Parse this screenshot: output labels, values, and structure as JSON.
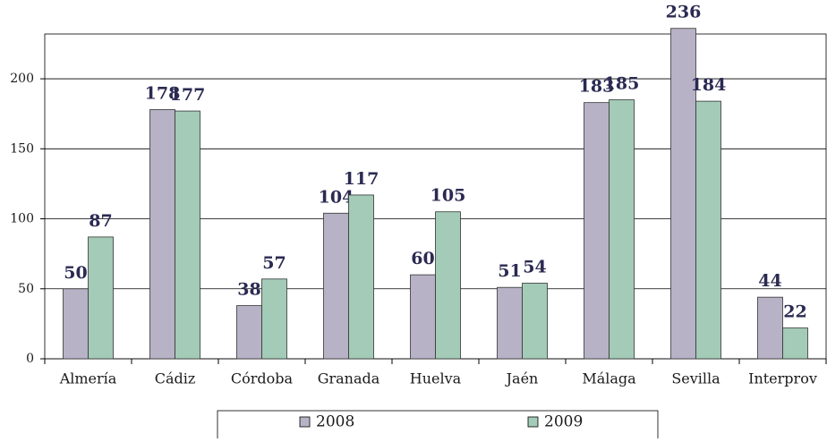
{
  "chart_data": {
    "type": "bar",
    "categories": [
      "Almería",
      "Cádiz",
      "Córdoba",
      "Granada",
      "Huelva",
      "Jaén",
      "Málaga",
      "Sevilla",
      "Interprov"
    ],
    "series": [
      {
        "name": "2008",
        "color": "#b7b2c5",
        "values": [
          50,
          178,
          38,
          104,
          60,
          51,
          183,
          236,
          44
        ]
      },
      {
        "name": "2009",
        "color": "#a3cbb7",
        "values": [
          87,
          177,
          57,
          117,
          105,
          54,
          185,
          184,
          22
        ]
      }
    ],
    "ylim": [
      0,
      232
    ],
    "yticks": [
      0,
      50,
      100,
      150,
      200
    ],
    "grid": true,
    "legend": "bottom"
  }
}
